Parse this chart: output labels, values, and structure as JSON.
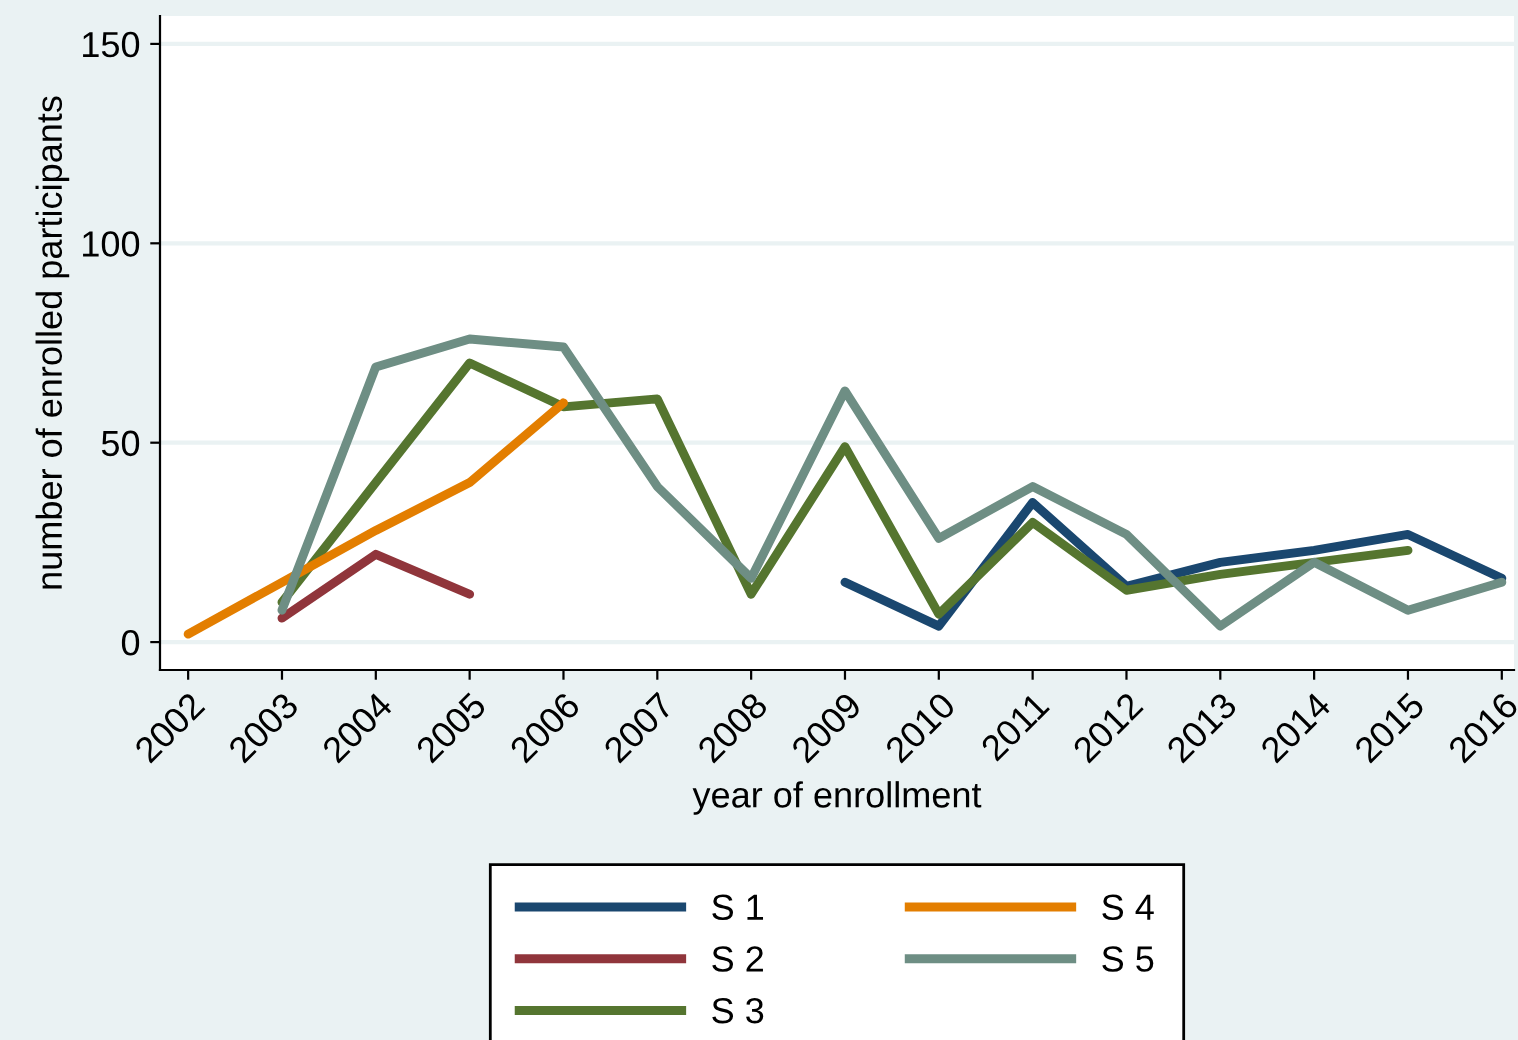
{
  "chart_data": {
    "type": "line",
    "xlabel": "year of enrollment",
    "ylabel": "number of enrolled participants",
    "x": [
      2002,
      2003,
      2004,
      2005,
      2006,
      2007,
      2008,
      2009,
      2010,
      2011,
      2012,
      2013,
      2014,
      2015,
      2016
    ],
    "xlim": [
      2001.7,
      2016.13
    ],
    "xticks": [
      2002,
      2003,
      2004,
      2005,
      2006,
      2007,
      2008,
      2009,
      2010,
      2011,
      2012,
      2013,
      2014,
      2015,
      2016
    ],
    "ylim": [
      -7,
      157
    ],
    "yticks": [
      0,
      50,
      100,
      150
    ],
    "grid": "y",
    "legend": "bottom",
    "marker": "none",
    "line_style": "solid",
    "series": [
      {
        "name": "S 1",
        "color": "#1a476f",
        "values": [
          null,
          null,
          null,
          null,
          null,
          null,
          null,
          15,
          4,
          35,
          14,
          20,
          23,
          27,
          16
        ]
      },
      {
        "name": "S 2",
        "color": "#90353b",
        "values": [
          null,
          6,
          22,
          12,
          null,
          null,
          null,
          null,
          null,
          null,
          null,
          null,
          null,
          null,
          null
        ]
      },
      {
        "name": "S 3",
        "color": "#55752f",
        "values": [
          null,
          10,
          40,
          70,
          59,
          61,
          12,
          49,
          7,
          30,
          13,
          17,
          20,
          23,
          null
        ]
      },
      {
        "name": "S 4",
        "color": "#e37e00",
        "values": [
          2,
          15,
          28,
          40,
          60,
          null,
          null,
          null,
          null,
          null,
          null,
          null,
          null,
          null,
          null
        ]
      },
      {
        "name": "S 5",
        "color": "#6e8e84",
        "values": [
          null,
          8,
          69,
          76,
          74,
          39,
          16,
          63,
          26,
          39,
          27,
          4,
          20,
          8,
          15
        ]
      }
    ]
  }
}
